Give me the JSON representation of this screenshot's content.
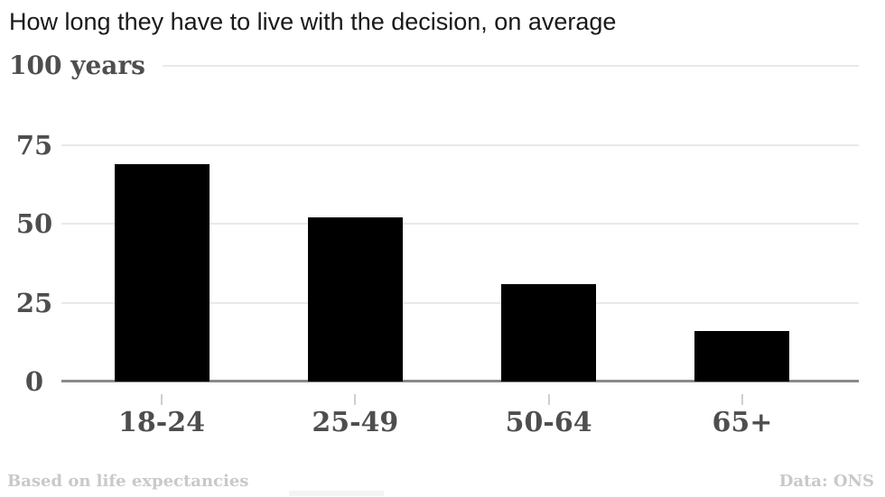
{
  "title": "How long they have to live with the decision, on average",
  "footer": {
    "left": "Based on life expectancies",
    "right": "Data: ONS"
  },
  "colors": {
    "bar": "#000000",
    "title_text": "#1a1a1a",
    "axis_text": "#4e4e4e",
    "gridline": "#e9e9e9",
    "baseline": "#8a8a8a",
    "tick": "#cfcfcf",
    "footer_text": "#c9c9c9"
  },
  "chart_data": {
    "type": "bar",
    "title": "How long they have to live with the decision, on average",
    "categories": [
      "18-24",
      "25-49",
      "50-64",
      "65+"
    ],
    "values": [
      69,
      52,
      31,
      16
    ],
    "xlabel": "",
    "ylabel": "100 years",
    "ylim": [
      0,
      100
    ],
    "yticks": [
      0,
      25,
      50,
      75
    ],
    "ymax_tick": 100,
    "grid": true,
    "legend": false,
    "source_note": "Data: ONS",
    "footnote": "Based on life expectancies"
  }
}
